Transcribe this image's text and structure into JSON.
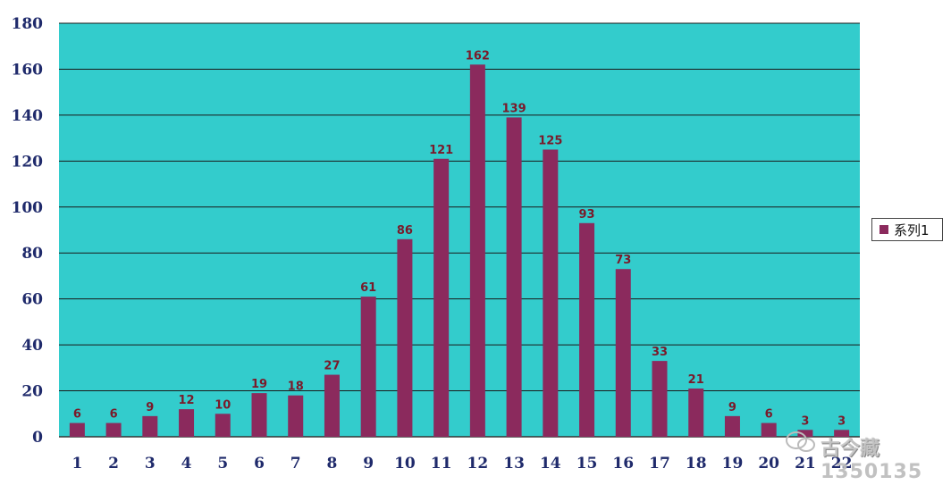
{
  "chart_data": {
    "type": "bar",
    "categories": [
      "1",
      "2",
      "3",
      "4",
      "5",
      "6",
      "7",
      "8",
      "9",
      "10",
      "11",
      "12",
      "13",
      "14",
      "15",
      "16",
      "17",
      "18",
      "19",
      "20",
      "21",
      "22"
    ],
    "series": [
      {
        "name": "系列1",
        "values": [
          6,
          6,
          9,
          12,
          10,
          19,
          18,
          27,
          61,
          86,
          121,
          162,
          139,
          125,
          93,
          73,
          33,
          21,
          9,
          6,
          3,
          3
        ]
      }
    ],
    "ylim": [
      0,
      180
    ],
    "yticks": [
      0,
      20,
      40,
      60,
      80,
      100,
      120,
      140,
      160,
      180
    ],
    "grid": true,
    "legend": "right",
    "title": "",
    "xlabel": "",
    "ylabel": "",
    "colors": {
      "plot_bg": "#33cccc",
      "bar": "#8b2a5d",
      "grid": "#1a1a1a",
      "data_label": "#7a1a2a",
      "axis_text": "#1f2a6b"
    }
  },
  "legend": {
    "label": "系列1"
  },
  "watermark": {
    "text": "古今藏",
    "number": "1350135"
  }
}
